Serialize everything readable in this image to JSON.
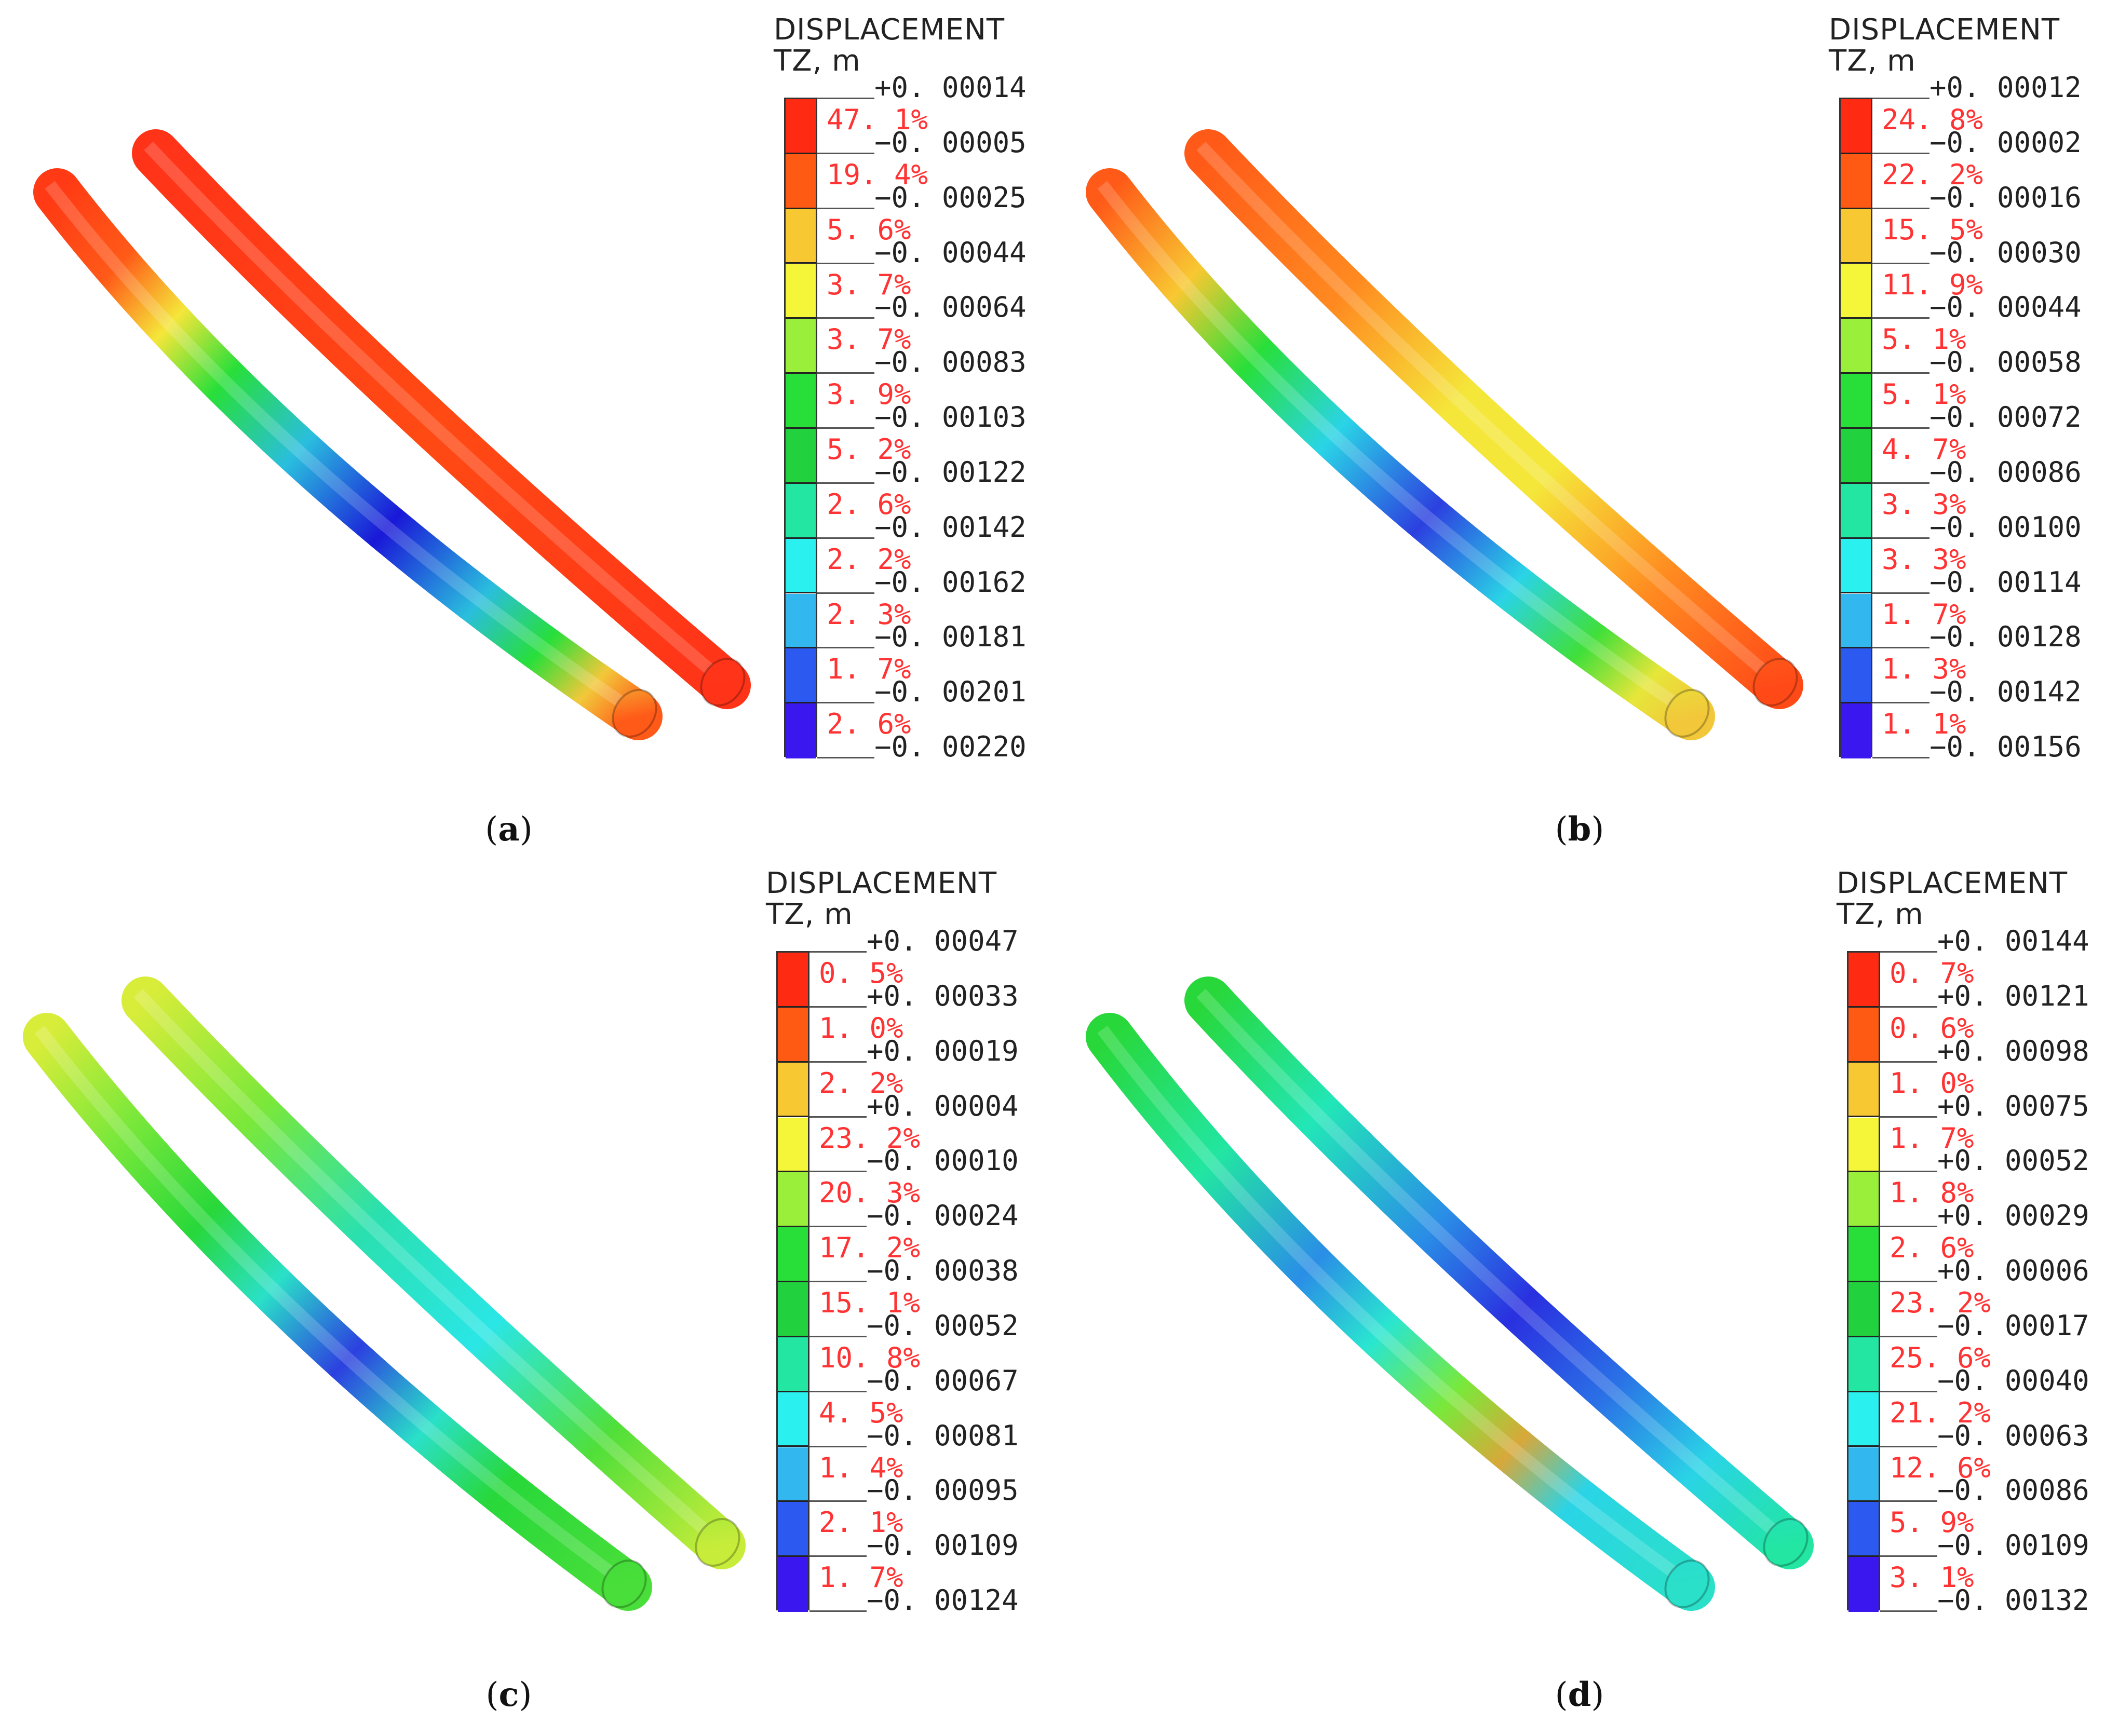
{
  "colors": [
    "#ff2a12",
    "#ff5a14",
    "#f8c832",
    "#f5f53a",
    "#9aef3a",
    "#28df3a",
    "#21d23e",
    "#22e6a2",
    "#2af0f0",
    "#32b8ef",
    "#2c5af0",
    "#3a16ef"
  ],
  "panels": [
    {
      "caption_letter": "a",
      "legend": {
        "title": "DISPLACEMENT",
        "subtitle": "TZ, m",
        "ticks": [
          "+0. 00014",
          "−0. 00005",
          "−0. 00025",
          "−0. 00044",
          "−0. 00064",
          "−0. 00083",
          "−0. 00103",
          "−0. 00122",
          "−0. 00142",
          "−0. 00162",
          "−0. 00181",
          "−0. 00201",
          "−0. 00220"
        ],
        "percents": [
          "47. 1%",
          "19. 4%",
          "5. 6%",
          "3. 7%",
          "3. 7%",
          "3. 9%",
          "5. 2%",
          "2. 6%",
          "2. 2%",
          "2. 3%",
          "1. 7%",
          "2. 6%"
        ]
      },
      "tubes": [
        {
          "stops": [
            [
              0,
              "#ff3a14"
            ],
            [
              0.12,
              "#ff5a18"
            ],
            [
              0.22,
              "#f5e63a"
            ],
            [
              0.32,
              "#28df3a"
            ],
            [
              0.45,
              "#2abede"
            ],
            [
              0.6,
              "#1a18d8"
            ],
            [
              0.75,
              "#2abede"
            ],
            [
              0.85,
              "#28df3a"
            ],
            [
              0.93,
              "#f2c83a"
            ],
            [
              1,
              "#ff5a18"
            ]
          ]
        },
        {
          "stops": [
            [
              0,
              "#ff3318"
            ],
            [
              0.5,
              "#ff4a14"
            ],
            [
              1,
              "#ff3318"
            ]
          ]
        }
      ]
    },
    {
      "caption_letter": "b",
      "legend": {
        "title": "DISPLACEMENT",
        "subtitle": "TZ, m",
        "ticks": [
          "+0. 00012",
          "−0. 00002",
          "−0. 00016",
          "−0. 00030",
          "−0. 00044",
          "−0. 00058",
          "−0. 00072",
          "−0. 00086",
          "−0. 00100",
          "−0. 00114",
          "−0. 00128",
          "−0. 00142",
          "−0. 00156"
        ],
        "percents": [
          "24. 8%",
          "22. 2%",
          "15. 5%",
          "11. 9%",
          "5. 1%",
          "5. 1%",
          "4. 7%",
          "3. 3%",
          "3. 3%",
          "1. 7%",
          "1. 3%",
          "1. 1%"
        ]
      },
      "tubes": [
        {
          "stops": [
            [
              0,
              "#ff5a18"
            ],
            [
              0.15,
              "#f8c832"
            ],
            [
              0.28,
              "#28df3a"
            ],
            [
              0.42,
              "#2ad4e6"
            ],
            [
              0.58,
              "#2c40e0"
            ],
            [
              0.72,
              "#2ad4e6"
            ],
            [
              0.84,
              "#40df3a"
            ],
            [
              0.93,
              "#e6e63a"
            ],
            [
              1,
              "#f2c83a"
            ]
          ]
        },
        {
          "stops": [
            [
              0,
              "#ff5a18"
            ],
            [
              0.25,
              "#ff8a20"
            ],
            [
              0.45,
              "#f5e63a"
            ],
            [
              0.6,
              "#f5e63a"
            ],
            [
              0.8,
              "#ff8a20"
            ],
            [
              1,
              "#ff4a18"
            ]
          ]
        }
      ]
    },
    {
      "caption_letter": "c",
      "legend": {
        "title": "DISPLACEMENT",
        "subtitle": "TZ, m",
        "ticks": [
          "+0. 00047",
          "+0. 00033",
          "+0. 00019",
          "+0. 00004",
          "−0. 00010",
          "−0. 00024",
          "−0. 00038",
          "−0. 00052",
          "−0. 00067",
          "−0. 00081",
          "−0. 00095",
          "−0. 00109",
          "−0. 00124"
        ],
        "percents": [
          "0. 5%",
          "1. 0%",
          "2. 2%",
          "23. 2%",
          "20. 3%",
          "17. 2%",
          "15. 1%",
          "10. 8%",
          "4. 5%",
          "1. 4%",
          "2. 1%",
          "1. 7%"
        ]
      },
      "tubes": [
        {
          "stops": [
            [
              0,
              "#d8ec3a"
            ],
            [
              0.15,
              "#7ae83a"
            ],
            [
              0.3,
              "#28d83a"
            ],
            [
              0.42,
              "#2ae0c8"
            ],
            [
              0.55,
              "#2c40e0"
            ],
            [
              0.68,
              "#2ae0c8"
            ],
            [
              0.8,
              "#28d83a"
            ],
            [
              1,
              "#4ade3a"
            ]
          ]
        },
        {
          "stops": [
            [
              0,
              "#d8ec3a"
            ],
            [
              0.2,
              "#7ae83a"
            ],
            [
              0.4,
              "#2ae0b0"
            ],
            [
              0.6,
              "#2ae6e6"
            ],
            [
              0.8,
              "#50df3a"
            ],
            [
              1,
              "#c8ec3a"
            ]
          ]
        }
      ]
    },
    {
      "caption_letter": "d",
      "legend": {
        "title": "DISPLACEMENT",
        "subtitle": "TZ, m",
        "ticks": [
          "+0. 00144",
          "+0. 00121",
          "+0. 00098",
          "+0. 00075",
          "+0. 00052",
          "+0. 00029",
          "+0. 00006",
          "−0. 00017",
          "−0. 00040",
          "−0. 00063",
          "−0. 00086",
          "−0. 00109",
          "−0. 00132"
        ],
        "percents": [
          "0. 7%",
          "0. 6%",
          "1. 0%",
          "1. 7%",
          "1. 8%",
          "2. 6%",
          "23. 2%",
          "25. 6%",
          "21. 2%",
          "12. 6%",
          "5. 9%",
          "3. 1%"
        ]
      },
      "tubes": [
        {
          "stops": [
            [
              0,
              "#28d83a"
            ],
            [
              0.2,
              "#22e6a2"
            ],
            [
              0.38,
              "#2a8ee6"
            ],
            [
              0.5,
              "#2ae6d0"
            ],
            [
              0.62,
              "#7ae83a"
            ],
            [
              0.72,
              "#d8a83a"
            ],
            [
              0.82,
              "#2ad4e6"
            ],
            [
              1,
              "#2ae0c8"
            ]
          ]
        },
        {
          "stops": [
            [
              0,
              "#28d83a"
            ],
            [
              0.2,
              "#22e6b8"
            ],
            [
              0.4,
              "#2a8ee6"
            ],
            [
              0.55,
              "#2a30e0"
            ],
            [
              0.7,
              "#2a70e6"
            ],
            [
              0.85,
              "#2ad4e6"
            ],
            [
              1,
              "#22e6a2"
            ]
          ]
        }
      ]
    }
  ]
}
